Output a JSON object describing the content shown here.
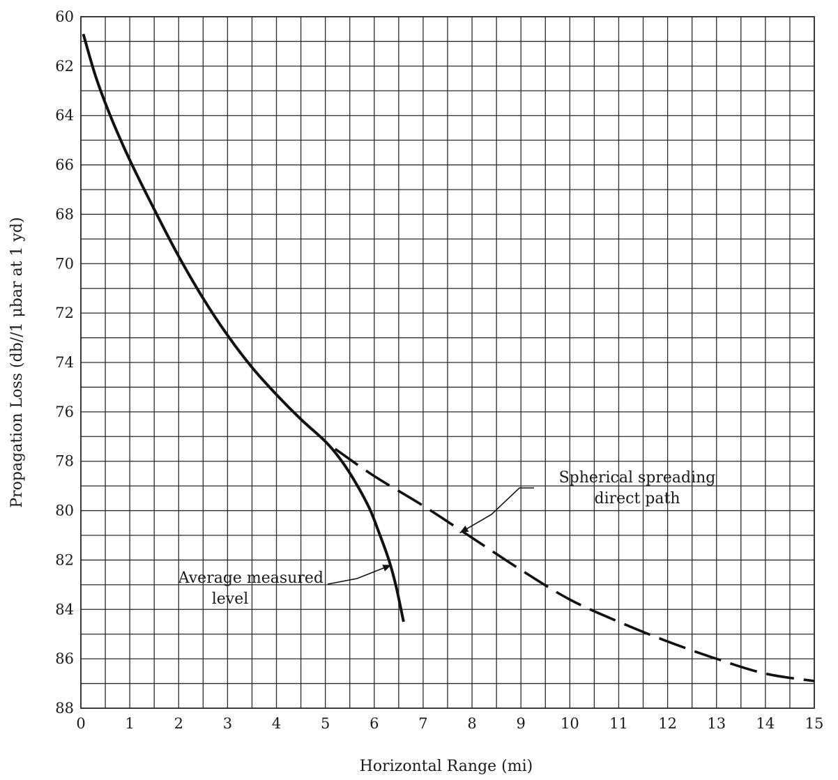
{
  "chart_data": {
    "type": "line",
    "title": "",
    "xlabel": "Horizontal Range (mi)",
    "ylabel": "Propagation Loss (db//1 μbar at 1 yd)",
    "xlim": [
      0,
      15
    ],
    "ylim": [
      88,
      60
    ],
    "y_inverted": true,
    "grid": true,
    "x_ticks": [
      0,
      1,
      2,
      3,
      4,
      5,
      6,
      7,
      8,
      9,
      10,
      11,
      12,
      13,
      14,
      15
    ],
    "x_ticks_minor": [
      0.5,
      1.5,
      2.5,
      3.5,
      4.5,
      5.5,
      6.5,
      7.5,
      8.5,
      9.5,
      10.5,
      11.5,
      12.5,
      13.5,
      14.5
    ],
    "y_ticks": [
      60,
      62,
      64,
      66,
      68,
      70,
      72,
      74,
      76,
      78,
      80,
      82,
      84,
      86,
      88
    ],
    "y_ticks_minor": [
      61,
      63,
      65,
      67,
      69,
      71,
      73,
      75,
      77,
      79,
      81,
      83,
      85,
      87
    ],
    "series": [
      {
        "name": "Average measured level",
        "style": "solid",
        "x": [
          0.05,
          0.3,
          0.6,
          1.0,
          1.5,
          2.0,
          2.5,
          3.0,
          3.5,
          4.0,
          4.5,
          5.0,
          5.3,
          5.6,
          5.9,
          6.1,
          6.3,
          6.45,
          6.6
        ],
        "y": [
          60.7,
          62.4,
          64.0,
          65.8,
          67.8,
          69.7,
          71.4,
          72.9,
          74.2,
          75.3,
          76.3,
          77.2,
          77.9,
          78.8,
          79.9,
          80.9,
          82.0,
          83.1,
          84.5
        ]
      },
      {
        "name": "Spherical spreading direct path",
        "style": "dashed",
        "x": [
          5.2,
          6.0,
          7.0,
          8.0,
          9.0,
          10.0,
          11.0,
          12.0,
          13.0,
          14.0,
          15.0
        ],
        "y": [
          77.5,
          78.6,
          79.8,
          81.1,
          82.4,
          83.6,
          84.5,
          85.3,
          86.0,
          86.6,
          86.9
        ]
      }
    ],
    "annotations": [
      {
        "lines": [
          "Average measured",
          "level"
        ],
        "arrow_to": [
          6.35,
          82.2
        ]
      },
      {
        "lines": [
          "Spherical spreading",
          "direct path"
        ],
        "arrow_to": [
          7.75,
          80.9
        ]
      }
    ]
  }
}
